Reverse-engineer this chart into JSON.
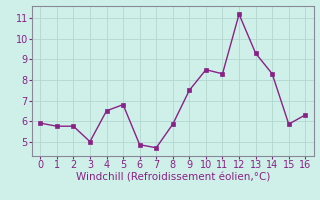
{
  "x": [
    0,
    1,
    2,
    3,
    4,
    5,
    6,
    7,
    8,
    9,
    10,
    11,
    12,
    13,
    14,
    15,
    16
  ],
  "y": [
    5.9,
    5.75,
    5.75,
    5.0,
    6.5,
    6.8,
    4.85,
    4.7,
    5.85,
    7.5,
    8.5,
    8.3,
    11.2,
    9.3,
    8.3,
    5.85,
    6.3
  ],
  "line_color": "#882288",
  "marker": "s",
  "marker_size": 2.5,
  "bg_color": "#cff0e8",
  "grid_color": "#b0d8d0",
  "xlabel": "Windchill (Refroidissement éolien,°C)",
  "xlabel_color": "#882288",
  "tick_color": "#882288",
  "spine_color": "#888899",
  "ylim": [
    4.3,
    11.6
  ],
  "xlim": [
    -0.5,
    16.5
  ],
  "yticks": [
    5,
    6,
    7,
    8,
    9,
    10,
    11
  ],
  "xticks": [
    0,
    1,
    2,
    3,
    4,
    5,
    6,
    7,
    8,
    9,
    10,
    11,
    12,
    13,
    14,
    15,
    16
  ],
  "label_fontsize": 7.5,
  "tick_fontsize": 7.0,
  "linewidth": 1.0
}
